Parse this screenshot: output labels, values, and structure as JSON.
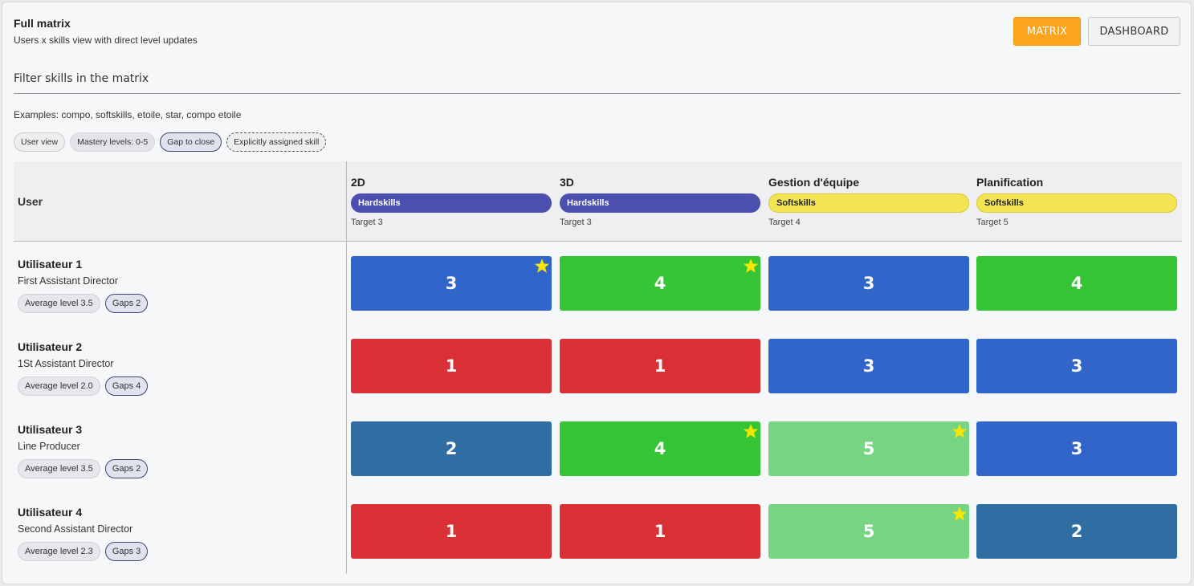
{
  "header": {
    "title": "Full matrix",
    "subtitle": "Users x skills view with direct level updates",
    "matrix_label": "MATRIX",
    "dashboard_label": "DASHBOARD"
  },
  "filter": {
    "placeholder": "Filter skills in the matrix",
    "examples": "Examples: compo, softskills, etoile, star, compo etoile"
  },
  "legend_chips": [
    "User view",
    "Mastery levels: 0-5",
    "Gap to close",
    "Explicitly assigned skill"
  ],
  "table": {
    "user_header": "User",
    "skills": [
      {
        "name": "2D",
        "category": "Hardskills",
        "target": "Target 3"
      },
      {
        "name": "3D",
        "category": "Hardskills",
        "target": "Target 3"
      },
      {
        "name": "Gestion d'équipe",
        "category": "Softskills",
        "target": "Target 4"
      },
      {
        "name": "Planification",
        "category": "Softskills",
        "target": "Target 5"
      }
    ],
    "rows": [
      {
        "name": "Utilisateur 1",
        "role": "First Assistant Director",
        "avg": "Average level 3.5",
        "gaps": "Gaps 2",
        "cells": [
          {
            "level": 3,
            "star": true
          },
          {
            "level": 4,
            "star": true
          },
          {
            "level": 3,
            "star": false
          },
          {
            "level": 4,
            "star": false
          }
        ]
      },
      {
        "name": "Utilisateur 2",
        "role": "1St Assistant Director",
        "avg": "Average level 2.0",
        "gaps": "Gaps 4",
        "cells": [
          {
            "level": 1,
            "star": false
          },
          {
            "level": 1,
            "star": false
          },
          {
            "level": 3,
            "star": false
          },
          {
            "level": 3,
            "star": false
          }
        ]
      },
      {
        "name": "Utilisateur 3",
        "role": "Line Producer",
        "avg": "Average level 3.5",
        "gaps": "Gaps 2",
        "cells": [
          {
            "level": 2,
            "star": false
          },
          {
            "level": 4,
            "star": true
          },
          {
            "level": 5,
            "star": true
          },
          {
            "level": 3,
            "star": false
          }
        ]
      },
      {
        "name": "Utilisateur 4",
        "role": "Second Assistant Director",
        "avg": "Average level 2.3",
        "gaps": "Gaps 3",
        "cells": [
          {
            "level": 1,
            "star": false
          },
          {
            "level": 1,
            "star": false
          },
          {
            "level": 5,
            "star": true
          },
          {
            "level": 2,
            "star": false
          }
        ]
      }
    ]
  },
  "colors": {
    "accent": "#fba51e",
    "hardskills": "#4b4fae",
    "softskills": "#f3e454",
    "star": "#f7e600",
    "level_1": "#d93036",
    "level_2": "#2f6da3",
    "level_3": "#3165ca",
    "level_4": "#35c434",
    "level_5": "#76d483"
  }
}
